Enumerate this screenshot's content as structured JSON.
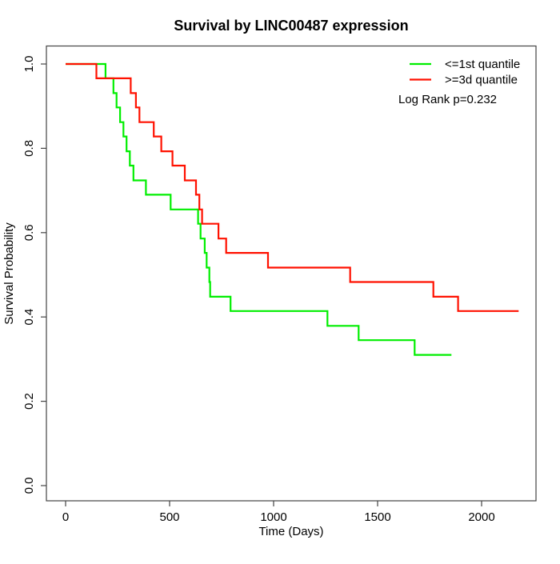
{
  "title": "Survival by LINC00487 expression",
  "x_axis": {
    "label": "Time (Days)",
    "ticks": [
      "0",
      "500",
      "1000",
      "1500",
      "2000"
    ],
    "tick_values": [
      0,
      500,
      1000,
      1500,
      2000
    ]
  },
  "y_axis": {
    "label": "Survival Probability",
    "ticks": [
      "0.0",
      "0.2",
      "0.4",
      "0.6",
      "0.8",
      "1.0"
    ],
    "tick_values": [
      0,
      0.2,
      0.4,
      0.6,
      0.8,
      1.0
    ]
  },
  "legend": {
    "items": [
      {
        "label": "<=1st quantile",
        "color": "#00ee00"
      },
      {
        "label": ">=3d quantile",
        "color": "#ff1100"
      }
    ],
    "stat_note": "Log Rank p=0.232"
  },
  "chart_data": {
    "type": "line",
    "subtype": "kaplan_meier_step",
    "title": "Survival by LINC00487 expression",
    "xlabel": "Time (Days)",
    "ylabel": "Survival Probability",
    "xlim": [
      -92,
      2262
    ],
    "ylim": [
      -0.035,
      1.043
    ],
    "grid": false,
    "legend_position": "top-right",
    "annotation": "Log Rank p=0.232",
    "series": [
      {
        "name": "<=1st quantile",
        "color": "#00ee00",
        "step_points": [
          [
            0,
            1.0
          ],
          [
            192,
            0.966
          ],
          [
            230,
            0.931
          ],
          [
            245,
            0.897
          ],
          [
            262,
            0.862
          ],
          [
            278,
            0.828
          ],
          [
            293,
            0.793
          ],
          [
            309,
            0.759
          ],
          [
            326,
            0.724
          ],
          [
            386,
            0.69
          ],
          [
            505,
            0.655
          ],
          [
            637,
            0.621
          ],
          [
            649,
            0.586
          ],
          [
            669,
            0.552
          ],
          [
            678,
            0.517
          ],
          [
            691,
            0.483
          ],
          [
            695,
            0.448
          ],
          [
            793,
            0.414
          ],
          [
            1259,
            0.379
          ],
          [
            1409,
            0.345
          ],
          [
            1678,
            0.31
          ],
          [
            1855,
            0.31
          ]
        ]
      },
      {
        "name": ">=3d quantile",
        "color": "#ff1100",
        "step_points": [
          [
            0,
            1.0
          ],
          [
            148,
            0.966
          ],
          [
            313,
            0.931
          ],
          [
            338,
            0.897
          ],
          [
            355,
            0.862
          ],
          [
            424,
            0.828
          ],
          [
            460,
            0.793
          ],
          [
            514,
            0.759
          ],
          [
            573,
            0.724
          ],
          [
            627,
            0.69
          ],
          [
            643,
            0.655
          ],
          [
            656,
            0.621
          ],
          [
            735,
            0.586
          ],
          [
            772,
            0.552
          ],
          [
            973,
            0.517
          ],
          [
            1368,
            0.483
          ],
          [
            1768,
            0.448
          ],
          [
            1887,
            0.414
          ],
          [
            2178,
            0.414
          ]
        ]
      }
    ]
  }
}
